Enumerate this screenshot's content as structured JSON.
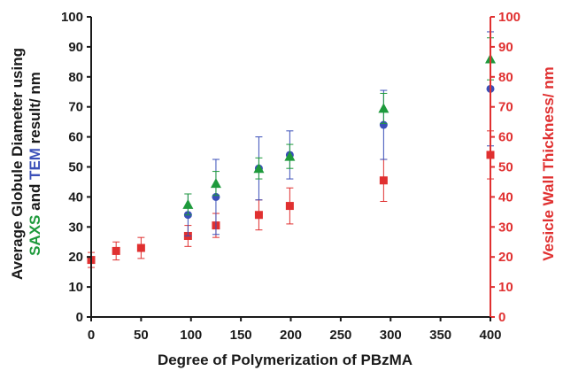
{
  "chart_data": {
    "type": "scatter",
    "title": "",
    "xlabel": "Degree of Polymerization of PBzMA",
    "ylabel_parts": [
      {
        "text": "SAXS",
        "color": "#1e9a3c"
      },
      {
        "text": " and ",
        "color": "#1a1a1a"
      },
      {
        "text": "TEM",
        "color": "#3a4fb8"
      },
      {
        "text": " result/ nm",
        "color": "#1a1a1a"
      }
    ],
    "ylabel_top": "Average Globule Diameter using",
    "y2label": "Vesicle Wall Thickness/ nm",
    "xlim": [
      0,
      400
    ],
    "ylim": [
      0,
      100
    ],
    "y2lim": [
      0,
      100
    ],
    "x_ticks": [
      0,
      50,
      100,
      150,
      200,
      250,
      300,
      350,
      400
    ],
    "y_ticks": [
      0,
      10,
      20,
      30,
      40,
      50,
      60,
      70,
      80,
      90,
      100
    ],
    "y2_ticks": [
      0,
      10,
      20,
      30,
      40,
      50,
      60,
      70,
      80,
      90,
      100
    ],
    "grid": false,
    "legend": "none",
    "series": [
      {
        "marker": "triangle",
        "color": "#1e9a3c",
        "axis": "left",
        "points": [
          {
            "x": 97,
            "y": 37.5,
            "err": 3.5
          },
          {
            "x": 125,
            "y": 44.5,
            "err": 4
          },
          {
            "x": 168,
            "y": 49.5,
            "err": 3.5
          },
          {
            "x": 199,
            "y": 53.5,
            "err": 4
          },
          {
            "x": 293,
            "y": 69.5,
            "err": 5
          },
          {
            "x": 400,
            "y": 86,
            "err": 7
          }
        ]
      },
      {
        "marker": "circle",
        "color": "#3a4fb8",
        "axis": "left",
        "points": [
          {
            "x": 97,
            "y": 34,
            "err": 7
          },
          {
            "x": 125,
            "y": 40,
            "err": 12.5
          },
          {
            "x": 168,
            "y": 49.5,
            "err": 10.5
          },
          {
            "x": 199,
            "y": 54,
            "err": 8
          },
          {
            "x": 293,
            "y": 64,
            "err": 11.5
          },
          {
            "x": 400,
            "y": 76,
            "err": 19
          }
        ]
      },
      {
        "marker": "square",
        "color": "#e03030",
        "axis": "right",
        "points": [
          {
            "x": 0,
            "y": 19,
            "err": 2.5
          },
          {
            "x": 25,
            "y": 22,
            "err": 3
          },
          {
            "x": 50,
            "y": 23,
            "err": 3.5
          },
          {
            "x": 97,
            "y": 27,
            "err": 3.5
          },
          {
            "x": 125,
            "y": 30.5,
            "err": 4
          },
          {
            "x": 168,
            "y": 34,
            "err": 5
          },
          {
            "x": 199,
            "y": 37,
            "err": 6
          },
          {
            "x": 293,
            "y": 45.5,
            "err": 7
          },
          {
            "x": 400,
            "y": 54,
            "err": 8
          }
        ]
      }
    ]
  }
}
